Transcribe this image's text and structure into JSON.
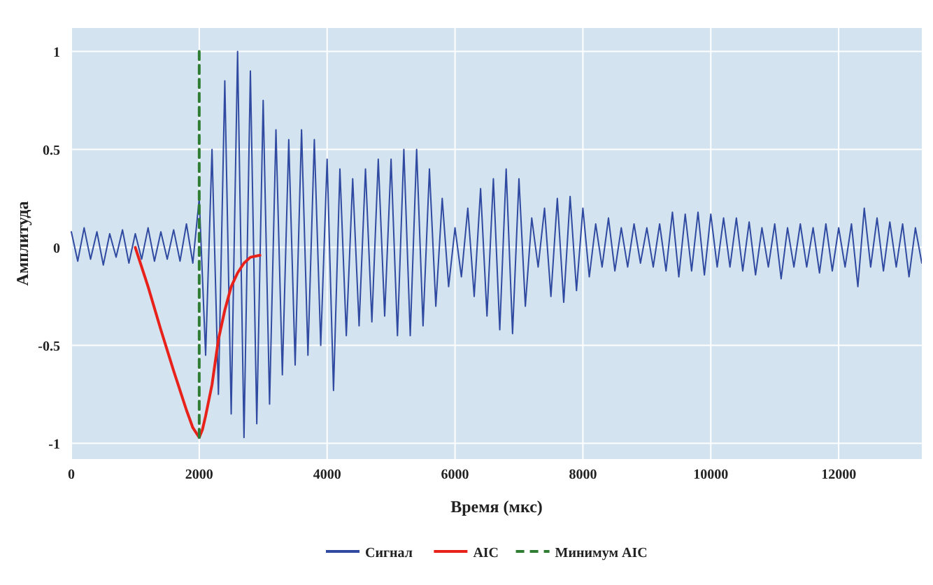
{
  "chart_data": {
    "type": "line",
    "xlabel": "Время (мкс)",
    "ylabel": "Амплитуда",
    "xlim": [
      0,
      13300
    ],
    "xticks": [
      0,
      2000,
      4000,
      6000,
      8000,
      10000,
      12000
    ],
    "ylim": [
      -1.08,
      1.12
    ],
    "yticks": [
      -1,
      -0.5,
      0,
      0.5,
      1
    ],
    "grid": true,
    "legend": "bottom",
    "marker": "none",
    "x": [
      0,
      100,
      200,
      300,
      400,
      500,
      600,
      700,
      800,
      900,
      1000,
      1100,
      1200,
      1300,
      1400,
      1500,
      1600,
      1700,
      1800,
      1900,
      2000,
      2100,
      2200,
      2300,
      2400,
      2500,
      2600,
      2700,
      2800,
      2900,
      3000,
      3100,
      3200,
      3300,
      3400,
      3500,
      3600,
      3700,
      3800,
      3900,
      4000,
      4100,
      4200,
      4300,
      4400,
      4500,
      4600,
      4700,
      4800,
      4900,
      5000,
      5100,
      5200,
      5300,
      5400,
      5500,
      5600,
      5700,
      5800,
      5900,
      6000,
      6100,
      6200,
      6300,
      6400,
      6500,
      6600,
      6700,
      6800,
      6900,
      7000,
      7100,
      7200,
      7300,
      7400,
      7500,
      7600,
      7700,
      7800,
      7900,
      8000,
      8100,
      8200,
      8300,
      8400,
      8500,
      8600,
      8700,
      8800,
      8900,
      9000,
      9100,
      9200,
      9300,
      9400,
      9500,
      9600,
      9700,
      9800,
      9900,
      10000,
      10100,
      10200,
      10300,
      10400,
      10500,
      10600,
      10700,
      10800,
      10900,
      11000,
      11100,
      11200,
      11300,
      11400,
      11500,
      11600,
      11700,
      11800,
      11900,
      12000,
      12100,
      12200,
      12300,
      12400,
      12500,
      12600,
      12700,
      12800,
      12900,
      13000,
      13100,
      13200,
      13300
    ],
    "series": [
      {
        "name": "Сигнал",
        "color": "#2f4aa0",
        "line_style": "solid",
        "values": [
          0.08,
          -0.07,
          0.1,
          -0.06,
          0.08,
          -0.09,
          0.07,
          -0.05,
          0.09,
          -0.08,
          0.07,
          -0.06,
          0.1,
          -0.07,
          0.08,
          -0.06,
          0.09,
          -0.07,
          0.12,
          -0.08,
          0.25,
          -0.55,
          0.5,
          -0.75,
          0.85,
          -0.85,
          1.0,
          -0.97,
          0.9,
          -0.9,
          0.75,
          -0.8,
          0.6,
          -0.65,
          0.55,
          -0.6,
          0.6,
          -0.55,
          0.55,
          -0.5,
          0.45,
          -0.73,
          0.4,
          -0.45,
          0.35,
          -0.4,
          0.4,
          -0.38,
          0.45,
          -0.35,
          0.45,
          -0.45,
          0.5,
          -0.45,
          0.5,
          -0.4,
          0.4,
          -0.3,
          0.25,
          -0.2,
          0.1,
          -0.15,
          0.2,
          -0.25,
          0.3,
          -0.35,
          0.35,
          -0.42,
          0.4,
          -0.44,
          0.35,
          -0.3,
          0.15,
          -0.1,
          0.2,
          -0.25,
          0.25,
          -0.28,
          0.26,
          -0.22,
          0.2,
          -0.15,
          0.12,
          -0.1,
          0.15,
          -0.12,
          0.1,
          -0.1,
          0.12,
          -0.08,
          0.1,
          -0.1,
          0.12,
          -0.12,
          0.18,
          -0.15,
          0.17,
          -0.12,
          0.18,
          -0.14,
          0.17,
          -0.1,
          0.15,
          -0.1,
          0.15,
          -0.12,
          0.13,
          -0.14,
          0.1,
          -0.1,
          0.12,
          -0.16,
          0.1,
          -0.1,
          0.12,
          -0.1,
          0.1,
          -0.13,
          0.12,
          -0.12,
          0.1,
          -0.1,
          0.12,
          -0.2,
          0.2,
          -0.1,
          0.15,
          -0.12,
          0.13,
          -0.1,
          0.12,
          -0.15,
          0.1,
          -0.08
        ]
      },
      {
        "name": "AIC",
        "color": "#e8221b",
        "line_style": "solid",
        "x": [
          1000,
          1200,
          1400,
          1600,
          1800,
          1900,
          2000,
          2050,
          2100,
          2200,
          2300,
          2400,
          2500,
          2600,
          2700,
          2800,
          2950
        ],
        "values": [
          0,
          -0.2,
          -0.42,
          -0.63,
          -0.83,
          -0.92,
          -0.97,
          -0.93,
          -0.86,
          -0.7,
          -0.47,
          -0.32,
          -0.2,
          -0.13,
          -0.08,
          -0.05,
          -0.04
        ]
      },
      {
        "name": "Минимум AIC",
        "color": "#2e7d32",
        "line_style": "dashed",
        "x": [
          2000,
          2000
        ],
        "values": [
          -0.97,
          1.0
        ]
      }
    ]
  }
}
